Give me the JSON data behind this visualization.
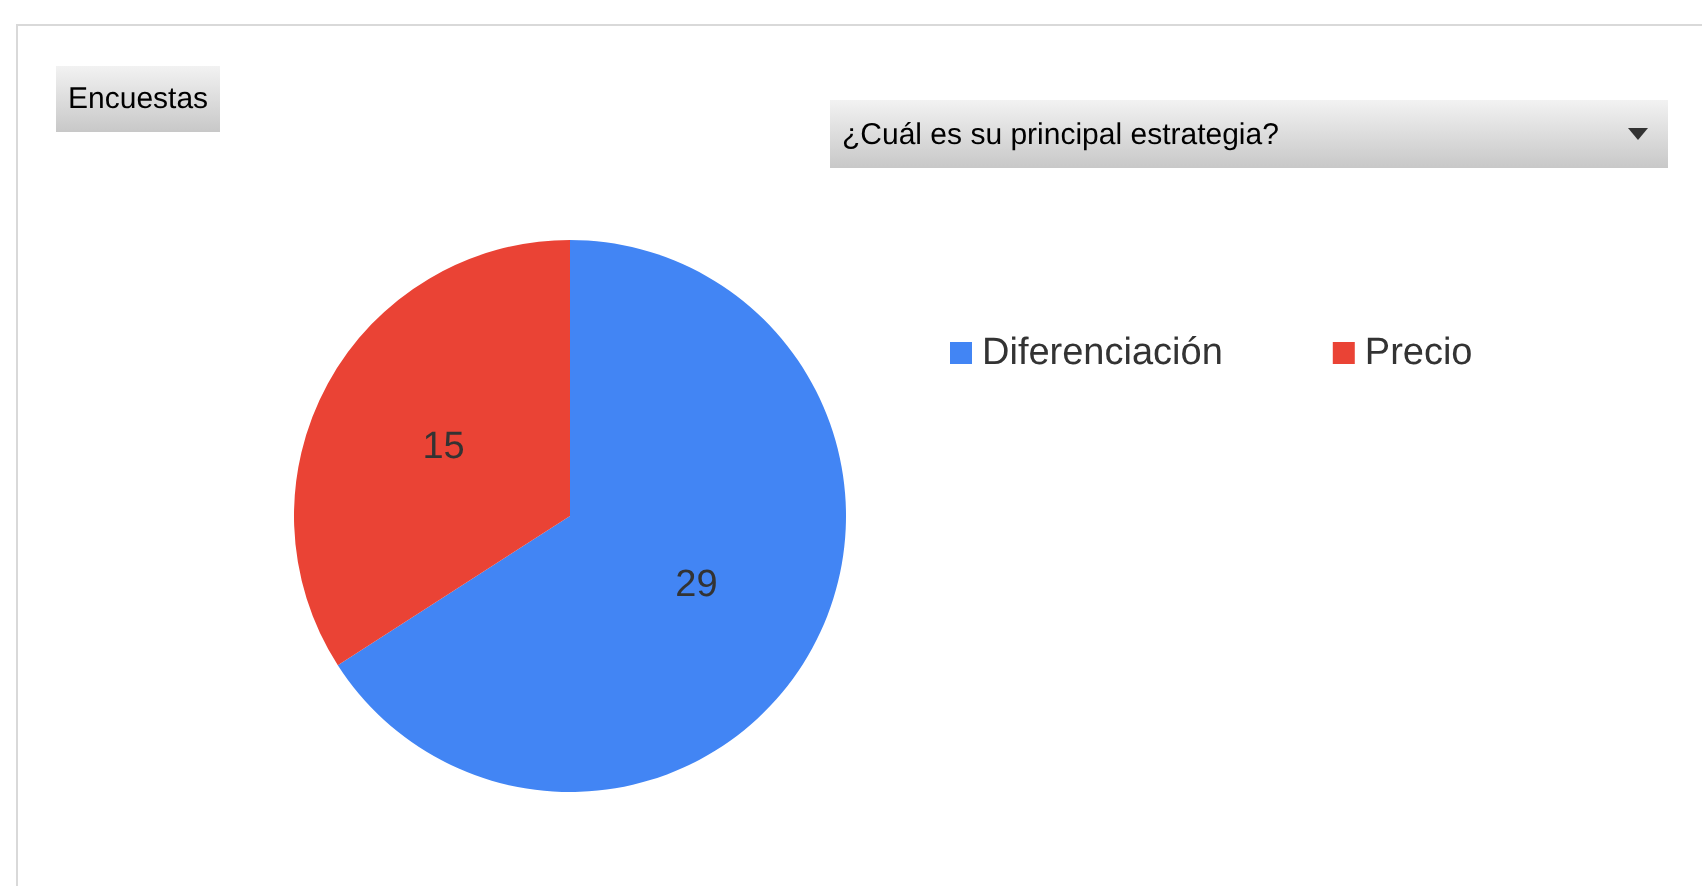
{
  "chart_data": {
    "type": "pie",
    "title": "Encuestas",
    "legend_title": "¿Cuál es su principal estrategia?",
    "categories": [
      "Diferenciación",
      "Precio"
    ],
    "values": [
      29,
      15
    ],
    "colors": [
      "#4285f4",
      "#ea4335"
    ],
    "data_labels": true,
    "legend": "top right"
  }
}
